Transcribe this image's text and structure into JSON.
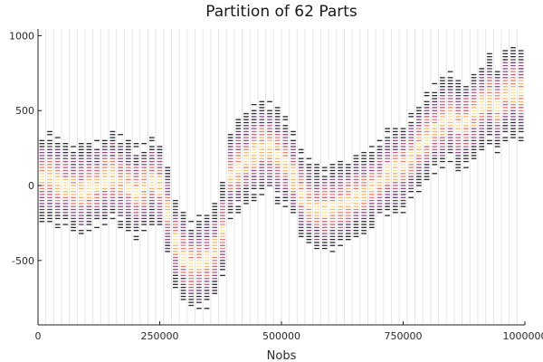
{
  "chart_data": {
    "type": "heatmap",
    "title": "Partition of 62 Parts",
    "xlabel": "Nobs",
    "ylabel": "",
    "xlim": [
      0,
      1000000
    ],
    "ylim": [
      -930,
      1045
    ],
    "x_ticks": [
      {
        "value": 0,
        "label": "0"
      },
      {
        "value": 250000,
        "label": "250000"
      },
      {
        "value": 500000,
        "label": "500000"
      },
      {
        "value": 750000,
        "label": "750000"
      },
      {
        "value": 1000000,
        "label": "1000000"
      }
    ],
    "y_ticks": [
      {
        "value": -500,
        "label": "-500"
      },
      {
        "value": 0,
        "label": "0"
      },
      {
        "value": 500,
        "label": "500"
      },
      {
        "value": 1000,
        "label": "1000"
      }
    ],
    "partitions": 62,
    "bin_height": 20,
    "grid": true,
    "colormap": [
      "#2d2a34",
      "#5b3a6e",
      "#8e4d86",
      "#c25f7f",
      "#e97f6d",
      "#f7b86c",
      "#fbe39b"
    ],
    "partition_stats": [
      {
        "center": 50,
        "spread": 290
      },
      {
        "center": 60,
        "spread": 300
      },
      {
        "center": 20,
        "spread": 300
      },
      {
        "center": 0,
        "spread": 290
      },
      {
        "center": -20,
        "spread": 310
      },
      {
        "center": -30,
        "spread": 310
      },
      {
        "center": -10,
        "spread": 300
      },
      {
        "center": 10,
        "spread": 300
      },
      {
        "center": 40,
        "spread": 300
      },
      {
        "center": 60,
        "spread": 300
      },
      {
        "center": 30,
        "spread": 310
      },
      {
        "center": 0,
        "spread": 310
      },
      {
        "center": -40,
        "spread": 320
      },
      {
        "center": -10,
        "spread": 300
      },
      {
        "center": 20,
        "spread": 300
      },
      {
        "center": 0,
        "spread": 300
      },
      {
        "center": -180,
        "spread": 320
      },
      {
        "center": -380,
        "spread": 300
      },
      {
        "center": -470,
        "spread": 310
      },
      {
        "center": -540,
        "spread": 310
      },
      {
        "center": -520,
        "spread": 320
      },
      {
        "center": -500,
        "spread": 320
      },
      {
        "center": -430,
        "spread": 320
      },
      {
        "center": -300,
        "spread": 330
      },
      {
        "center": 80,
        "spread": 300
      },
      {
        "center": 130,
        "spread": 310
      },
      {
        "center": 180,
        "spread": 310
      },
      {
        "center": 220,
        "spread": 320
      },
      {
        "center": 250,
        "spread": 320
      },
      {
        "center": 240,
        "spread": 320
      },
      {
        "center": 200,
        "spread": 320
      },
      {
        "center": 160,
        "spread": 310
      },
      {
        "center": 60,
        "spread": 310
      },
      {
        "center": -60,
        "spread": 300
      },
      {
        "center": -110,
        "spread": 300
      },
      {
        "center": -150,
        "spread": 300
      },
      {
        "center": -160,
        "spread": 290
      },
      {
        "center": -150,
        "spread": 290
      },
      {
        "center": -120,
        "spread": 290
      },
      {
        "center": -100,
        "spread": 290
      },
      {
        "center": -70,
        "spread": 280
      },
      {
        "center": -40,
        "spread": 280
      },
      {
        "center": -10,
        "spread": 270
      },
      {
        "center": 30,
        "spread": 280
      },
      {
        "center": 90,
        "spread": 300
      },
      {
        "center": 100,
        "spread": 300
      },
      {
        "center": 120,
        "spread": 300
      },
      {
        "center": 190,
        "spread": 300
      },
      {
        "center": 260,
        "spread": 300
      },
      {
        "center": 320,
        "spread": 300
      },
      {
        "center": 380,
        "spread": 300
      },
      {
        "center": 420,
        "spread": 310
      },
      {
        "center": 460,
        "spread": 300
      },
      {
        "center": 400,
        "spread": 300
      },
      {
        "center": 420,
        "spread": 310
      },
      {
        "center": 480,
        "spread": 300
      },
      {
        "center": 540,
        "spread": 300
      },
      {
        "center": 580,
        "spread": 300
      },
      {
        "center": 520,
        "spread": 300
      },
      {
        "center": 600,
        "spread": 310
      },
      {
        "center": 640,
        "spread": 320
      },
      {
        "center": 620,
        "spread": 320
      }
    ]
  }
}
